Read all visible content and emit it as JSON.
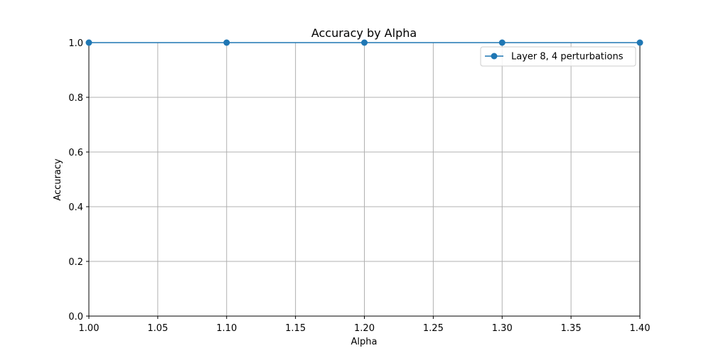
{
  "chart_data": {
    "type": "line",
    "title": "Accuracy by Alpha",
    "xlabel": "Alpha",
    "ylabel": "Accuracy",
    "xlim": [
      1.0,
      1.4
    ],
    "ylim": [
      0.0,
      1.0
    ],
    "x_ticks": [
      1.0,
      1.05,
      1.1,
      1.15,
      1.2,
      1.25,
      1.3,
      1.35,
      1.4
    ],
    "x_tick_labels": [
      "1.00",
      "1.05",
      "1.10",
      "1.15",
      "1.20",
      "1.25",
      "1.30",
      "1.35",
      "1.40"
    ],
    "y_ticks": [
      0.0,
      0.2,
      0.4,
      0.6,
      0.8,
      1.0
    ],
    "y_tick_labels": [
      "0.0",
      "0.2",
      "0.4",
      "0.6",
      "0.8",
      "1.0"
    ],
    "grid": true,
    "legend_position": "top-right",
    "series": [
      {
        "name": "Layer 8, 4 perturbations",
        "color": "#1f77b4",
        "marker": "circle",
        "x": [
          1.0,
          1.1,
          1.2,
          1.3,
          1.4
        ],
        "y": [
          1.0,
          1.0,
          1.0,
          1.0,
          1.0
        ]
      }
    ]
  }
}
